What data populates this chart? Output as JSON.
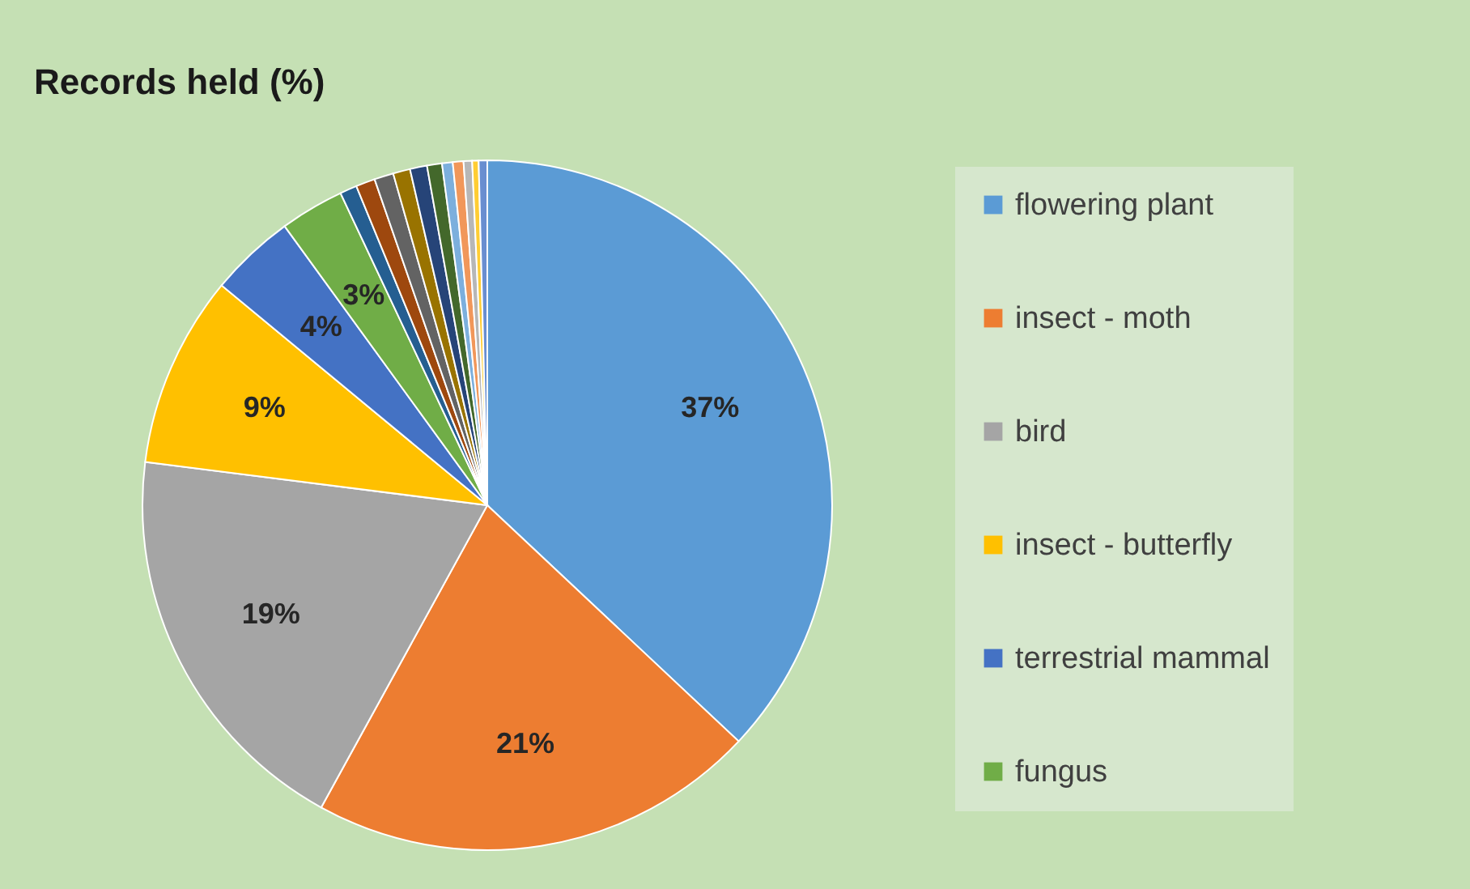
{
  "chart_data": {
    "type": "pie",
    "title": "Records held (%)",
    "categories": [
      "flowering plant",
      "insect - moth",
      "bird",
      "insect - butterfly",
      "terrestrial mammal",
      "fungus",
      null,
      null,
      null,
      null,
      null,
      null,
      null,
      null,
      null,
      null,
      null
    ],
    "values": [
      37,
      21,
      19,
      9,
      4,
      3,
      0.8,
      0.9,
      0.9,
      0.8,
      0.8,
      0.7,
      0.5,
      0.5,
      0.4,
      0.3,
      0.4
    ],
    "colors": [
      "#5b9bd5",
      "#ed7d31",
      "#a5a5a5",
      "#ffc000",
      "#4472c4",
      "#70ad47",
      "#255e91",
      "#9e480e",
      "#636363",
      "#997300",
      "#264478",
      "#43682b",
      "#7cafdd",
      "#f1975a",
      "#b7b7b7",
      "#ffcd33",
      "#698ed0"
    ],
    "value_labels": [
      "37%",
      "21%",
      "19%",
      "9%",
      "4%",
      "3%",
      null,
      null,
      null,
      null,
      null,
      null,
      null,
      null,
      null,
      null,
      null
    ],
    "legend": "right"
  }
}
